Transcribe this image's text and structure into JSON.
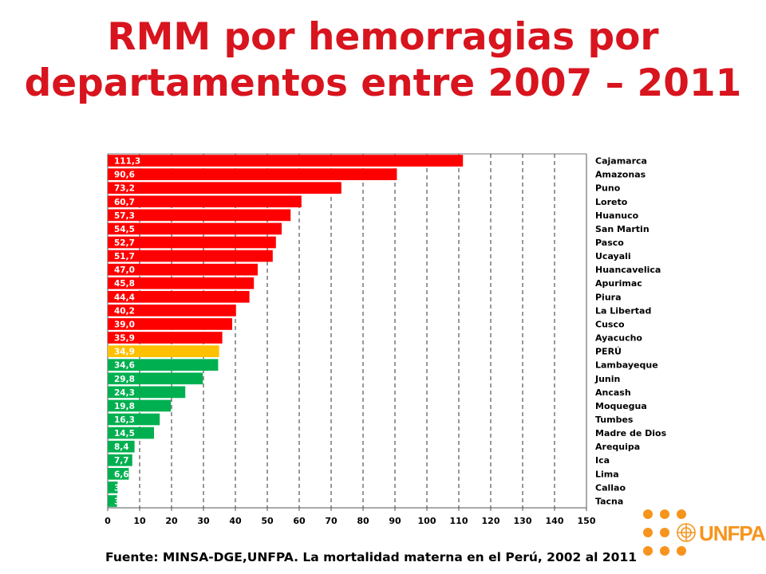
{
  "title_line1": "RMM por hemorragias por",
  "title_line2": "departamentos entre 2007 – 2011",
  "source": "Fuente: MINSA-DGE,UNFPA. La mortalidad materna en el Perú, 2002 al 2011",
  "logo": {
    "text": "UNFPA",
    "icon": "un-emblem-icon",
    "color": "#f7941d"
  },
  "colors": {
    "above_national": "#ff0000",
    "national": "#ffc000",
    "below_national": "#00b050"
  },
  "chart_data": {
    "type": "bar",
    "orientation": "horizontal",
    "title": "RMM por hemorragias por departamentos entre 2007 – 2011",
    "xlim": [
      0,
      150
    ],
    "xticks": [
      "0",
      "10",
      "20",
      "30",
      "40",
      "50",
      "60",
      "70",
      "80",
      "90",
      "100",
      "110",
      "120",
      "130",
      "140",
      "150"
    ],
    "grid": "vertical dashed",
    "bars": [
      {
        "name": "Cajamarca",
        "value": 111.3,
        "label": "111,3",
        "color": "#ff0000"
      },
      {
        "name": "Amazonas",
        "value": 90.6,
        "label": "90,6",
        "color": "#ff0000"
      },
      {
        "name": "Puno",
        "value": 73.2,
        "label": "73,2",
        "color": "#ff0000"
      },
      {
        "name": "Loreto",
        "value": 60.7,
        "label": "60,7",
        "color": "#ff0000"
      },
      {
        "name": "Huanuco",
        "value": 57.3,
        "label": "57,3",
        "color": "#ff0000"
      },
      {
        "name": "San Martin",
        "value": 54.5,
        "label": "54,5",
        "color": "#ff0000"
      },
      {
        "name": "Pasco",
        "value": 52.7,
        "label": "52,7",
        "color": "#ff0000"
      },
      {
        "name": "Ucayali",
        "value": 51.7,
        "label": "51,7",
        "color": "#ff0000"
      },
      {
        "name": "Huancavelica",
        "value": 47.0,
        "label": "47,0",
        "color": "#ff0000"
      },
      {
        "name": "Apurimac",
        "value": 45.8,
        "label": "45,8",
        "color": "#ff0000"
      },
      {
        "name": "Piura",
        "value": 44.4,
        "label": "44,4",
        "color": "#ff0000"
      },
      {
        "name": "La Libertad",
        "value": 40.2,
        "label": "40,2",
        "color": "#ff0000"
      },
      {
        "name": "Cusco",
        "value": 39.0,
        "label": "39,0",
        "color": "#ff0000"
      },
      {
        "name": "Ayacucho",
        "value": 35.9,
        "label": "35,9",
        "color": "#ff0000"
      },
      {
        "name": "PERÚ",
        "value": 34.9,
        "label": "34,9",
        "color": "#ffc000"
      },
      {
        "name": "Lambayeque",
        "value": 34.6,
        "label": "34,6",
        "color": "#00b050"
      },
      {
        "name": "Junin",
        "value": 29.8,
        "label": "29,8",
        "color": "#00b050"
      },
      {
        "name": "Ancash",
        "value": 24.3,
        "label": "24,3",
        "color": "#00b050"
      },
      {
        "name": "Moquegua",
        "value": 19.8,
        "label": "19,8",
        "color": "#00b050"
      },
      {
        "name": "Tumbes",
        "value": 16.3,
        "label": "16,3",
        "color": "#00b050"
      },
      {
        "name": "Madre de Dios",
        "value": 14.5,
        "label": "14,5",
        "color": "#00b050"
      },
      {
        "name": "Arequipa",
        "value": 8.4,
        "label": "8,4",
        "color": "#00b050"
      },
      {
        "name": "Ica",
        "value": 7.7,
        "label": "7,7",
        "color": "#00b050"
      },
      {
        "name": "Lima",
        "value": 6.6,
        "label": "6,6",
        "color": "#00b050"
      },
      {
        "name": "Callao",
        "value": 3.1,
        "label": "3",
        "color": "#00b050"
      },
      {
        "name": "Tacna",
        "value": 2.9,
        "label": "3",
        "color": "#00b050"
      }
    ]
  }
}
